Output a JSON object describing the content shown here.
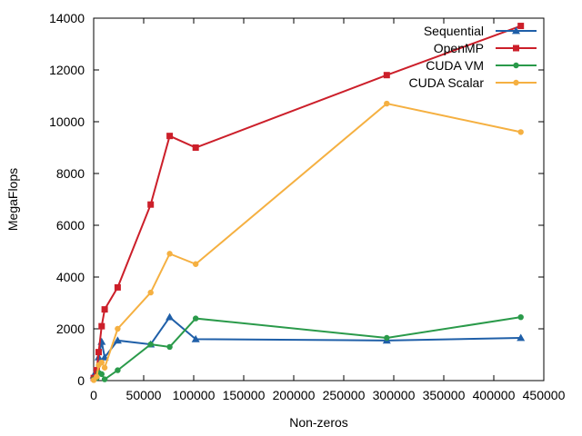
{
  "chart_data": {
    "type": "line",
    "title": "",
    "xlabel": "Non-zeros",
    "ylabel": "MegaFlops",
    "xlim": [
      0,
      450000
    ],
    "ylim": [
      0,
      14000
    ],
    "xticks": [
      0,
      50000,
      100000,
      150000,
      200000,
      250000,
      300000,
      350000,
      400000,
      450000
    ],
    "yticks": [
      0,
      2000,
      4000,
      6000,
      8000,
      10000,
      12000,
      14000
    ],
    "xtick_labels": [
      "0",
      "50000",
      "100000",
      "150000",
      "200000",
      "250000",
      "300000",
      "350000",
      "400000",
      "450000"
    ],
    "ytick_labels": [
      "0",
      "2000",
      "4000",
      "6000",
      "8000",
      "10000",
      "12000",
      "14000"
    ],
    "grid": false,
    "legend_position": "top-right",
    "series": [
      {
        "name": "Sequential",
        "color": "#1f5fa8",
        "marker": "triangle",
        "x": [
          100,
          3000,
          5000,
          8000,
          11000,
          24000,
          57000,
          76000,
          102000,
          293000,
          427000
        ],
        "y": [
          200,
          400,
          900,
          1500,
          900,
          1550,
          1400,
          2450,
          1600,
          1550,
          1650
        ]
      },
      {
        "name": "OpenMP",
        "color": "#cc1f2a",
        "marker": "square",
        "x": [
          100,
          3000,
          5000,
          8000,
          11000,
          24000,
          57000,
          76000,
          102000,
          293000,
          427000
        ],
        "y": [
          100,
          400,
          1100,
          2100,
          2750,
          3600,
          6800,
          9450,
          9000,
          11800,
          13700
        ]
      },
      {
        "name": "CUDA VM",
        "color": "#2a9a4a",
        "marker": "circle",
        "x": [
          100,
          3000,
          5000,
          8000,
          11000,
          24000,
          57000,
          76000,
          102000,
          293000,
          427000
        ],
        "y": [
          50,
          100,
          300,
          250,
          50,
          400,
          1400,
          1300,
          2400,
          1650,
          2450
        ]
      },
      {
        "name": "CUDA Scalar",
        "color": "#f5b041",
        "marker": "circle",
        "x": [
          100,
          3000,
          5000,
          8000,
          11000,
          24000,
          57000,
          76000,
          102000,
          293000,
          427000
        ],
        "y": [
          20,
          150,
          600,
          700,
          500,
          2000,
          3400,
          4900,
          4500,
          10700,
          9600
        ]
      }
    ]
  }
}
